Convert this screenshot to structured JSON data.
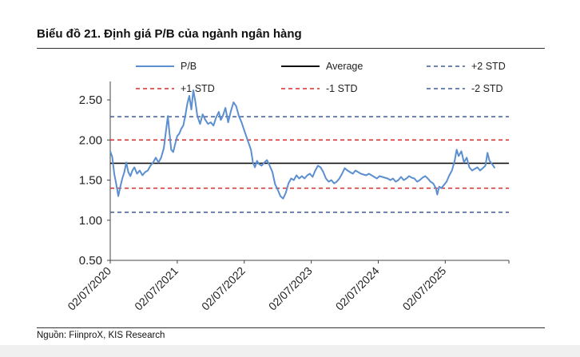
{
  "title": "Biểu đồ 21. Định giá P/B của ngành ngân hàng",
  "source": "Nguồn: FiinproX, KIS Research",
  "chart_data": {
    "type": "line",
    "ylim": [
      0.5,
      2.65
    ],
    "yticks": [
      "0.50",
      "1.00",
      "1.50",
      "2.00",
      "2.50"
    ],
    "ytick_values": [
      0.5,
      1.0,
      1.5,
      2.0,
      2.5
    ],
    "xticks": [
      "02/07/2020",
      "02/07/2021",
      "02/07/2022",
      "02/07/2023",
      "02/07/2024",
      "02/07/2025"
    ],
    "xtick_values": [
      0,
      1,
      2,
      3,
      4,
      5
    ],
    "xlim": [
      0,
      5.95
    ],
    "legend": "top",
    "grid": false,
    "series": [
      {
        "name": "P/B",
        "color": "#5b8fd0",
        "points": [
          [
            0.0,
            1.86
          ],
          [
            0.03,
            1.79
          ],
          [
            0.06,
            1.58
          ],
          [
            0.09,
            1.45
          ],
          [
            0.12,
            1.3
          ],
          [
            0.15,
            1.42
          ],
          [
            0.18,
            1.52
          ],
          [
            0.21,
            1.6
          ],
          [
            0.24,
            1.72
          ],
          [
            0.27,
            1.6
          ],
          [
            0.3,
            1.55
          ],
          [
            0.33,
            1.62
          ],
          [
            0.36,
            1.66
          ],
          [
            0.4,
            1.58
          ],
          [
            0.44,
            1.62
          ],
          [
            0.48,
            1.56
          ],
          [
            0.52,
            1.6
          ],
          [
            0.56,
            1.62
          ],
          [
            0.6,
            1.68
          ],
          [
            0.64,
            1.72
          ],
          [
            0.68,
            1.78
          ],
          [
            0.72,
            1.72
          ],
          [
            0.76,
            1.78
          ],
          [
            0.8,
            1.9
          ],
          [
            0.83,
            2.1
          ],
          [
            0.86,
            2.3
          ],
          [
            0.88,
            2.12
          ],
          [
            0.91,
            1.88
          ],
          [
            0.94,
            1.85
          ],
          [
            0.97,
            1.95
          ],
          [
            1.0,
            2.05
          ],
          [
            1.03,
            2.08
          ],
          [
            1.06,
            2.14
          ],
          [
            1.09,
            2.18
          ],
          [
            1.12,
            2.3
          ],
          [
            1.15,
            2.45
          ],
          [
            1.18,
            2.55
          ],
          [
            1.21,
            2.38
          ],
          [
            1.24,
            2.62
          ],
          [
            1.27,
            2.48
          ],
          [
            1.3,
            2.3
          ],
          [
            1.34,
            2.2
          ],
          [
            1.38,
            2.32
          ],
          [
            1.42,
            2.25
          ],
          [
            1.46,
            2.2
          ],
          [
            1.5,
            2.22
          ],
          [
            1.54,
            2.18
          ],
          [
            1.58,
            2.28
          ],
          [
            1.62,
            2.35
          ],
          [
            1.65,
            2.25
          ],
          [
            1.68,
            2.3
          ],
          [
            1.72,
            2.4
          ],
          [
            1.76,
            2.22
          ],
          [
            1.8,
            2.36
          ],
          [
            1.84,
            2.47
          ],
          [
            1.88,
            2.42
          ],
          [
            1.92,
            2.3
          ],
          [
            1.96,
            2.22
          ],
          [
            2.0,
            2.12
          ],
          [
            2.05,
            2.0
          ],
          [
            2.1,
            1.88
          ],
          [
            2.13,
            1.72
          ],
          [
            2.16,
            1.66
          ],
          [
            2.19,
            1.74
          ],
          [
            2.22,
            1.7
          ],
          [
            2.26,
            1.68
          ],
          [
            2.3,
            1.72
          ],
          [
            2.34,
            1.75
          ],
          [
            2.38,
            1.68
          ],
          [
            2.42,
            1.6
          ],
          [
            2.46,
            1.45
          ],
          [
            2.5,
            1.38
          ],
          [
            2.54,
            1.3
          ],
          [
            2.58,
            1.27
          ],
          [
            2.62,
            1.34
          ],
          [
            2.66,
            1.46
          ],
          [
            2.7,
            1.52
          ],
          [
            2.74,
            1.5
          ],
          [
            2.78,
            1.56
          ],
          [
            2.82,
            1.52
          ],
          [
            2.86,
            1.55
          ],
          [
            2.9,
            1.52
          ],
          [
            2.94,
            1.56
          ],
          [
            2.98,
            1.58
          ],
          [
            3.02,
            1.54
          ],
          [
            3.06,
            1.62
          ],
          [
            3.1,
            1.68
          ],
          [
            3.14,
            1.66
          ],
          [
            3.18,
            1.6
          ],
          [
            3.22,
            1.52
          ],
          [
            3.26,
            1.48
          ],
          [
            3.3,
            1.5
          ],
          [
            3.34,
            1.46
          ],
          [
            3.38,
            1.48
          ],
          [
            3.42,
            1.52
          ],
          [
            3.46,
            1.58
          ],
          [
            3.5,
            1.65
          ],
          [
            3.54,
            1.62
          ],
          [
            3.58,
            1.6
          ],
          [
            3.62,
            1.58
          ],
          [
            3.66,
            1.62
          ],
          [
            3.7,
            1.6
          ],
          [
            3.74,
            1.58
          ],
          [
            3.78,
            1.57
          ],
          [
            3.82,
            1.56
          ],
          [
            3.86,
            1.58
          ],
          [
            3.9,
            1.56
          ],
          [
            3.94,
            1.54
          ],
          [
            3.98,
            1.52
          ],
          [
            4.02,
            1.55
          ],
          [
            4.06,
            1.54
          ],
          [
            4.1,
            1.53
          ],
          [
            4.14,
            1.52
          ],
          [
            4.18,
            1.5
          ],
          [
            4.22,
            1.52
          ],
          [
            4.26,
            1.48
          ],
          [
            4.3,
            1.5
          ],
          [
            4.34,
            1.54
          ],
          [
            4.38,
            1.5
          ],
          [
            4.42,
            1.52
          ],
          [
            4.46,
            1.55
          ],
          [
            4.5,
            1.53
          ],
          [
            4.54,
            1.52
          ],
          [
            4.58,
            1.48
          ],
          [
            4.62,
            1.5
          ],
          [
            4.66,
            1.53
          ],
          [
            4.7,
            1.55
          ],
          [
            4.74,
            1.52
          ],
          [
            4.78,
            1.48
          ],
          [
            4.82,
            1.46
          ],
          [
            4.86,
            1.4
          ],
          [
            4.88,
            1.32
          ],
          [
            4.91,
            1.42
          ],
          [
            4.94,
            1.4
          ],
          [
            4.98,
            1.44
          ],
          [
            5.02,
            1.48
          ],
          [
            5.06,
            1.56
          ],
          [
            5.1,
            1.62
          ],
          [
            5.14,
            1.74
          ],
          [
            5.17,
            1.88
          ],
          [
            5.2,
            1.8
          ],
          [
            5.24,
            1.86
          ],
          [
            5.28,
            1.72
          ],
          [
            5.32,
            1.78
          ],
          [
            5.36,
            1.66
          ],
          [
            5.4,
            1.62
          ],
          [
            5.44,
            1.64
          ],
          [
            5.48,
            1.66
          ],
          [
            5.52,
            1.62
          ],
          [
            5.56,
            1.65
          ],
          [
            5.6,
            1.68
          ],
          [
            5.63,
            1.84
          ],
          [
            5.66,
            1.74
          ],
          [
            5.7,
            1.7
          ],
          [
            5.74,
            1.65
          ]
        ]
      },
      {
        "name": "Average",
        "color": "#111111",
        "dash": "solid",
        "value": 1.71
      },
      {
        "name": "+2 STD",
        "color": "#3e5c96",
        "dash": "dashed",
        "value": 2.29
      },
      {
        "name": "+1 STD",
        "color": "#d62b2b",
        "dash": "dashed",
        "value": 2.0
      },
      {
        "name": "-1 STD",
        "color": "#d62b2b",
        "dash": "dashed",
        "value": 1.4
      },
      {
        "name": "-2 STD",
        "color": "#3e5c96",
        "dash": "dashed",
        "value": 1.1
      }
    ]
  }
}
